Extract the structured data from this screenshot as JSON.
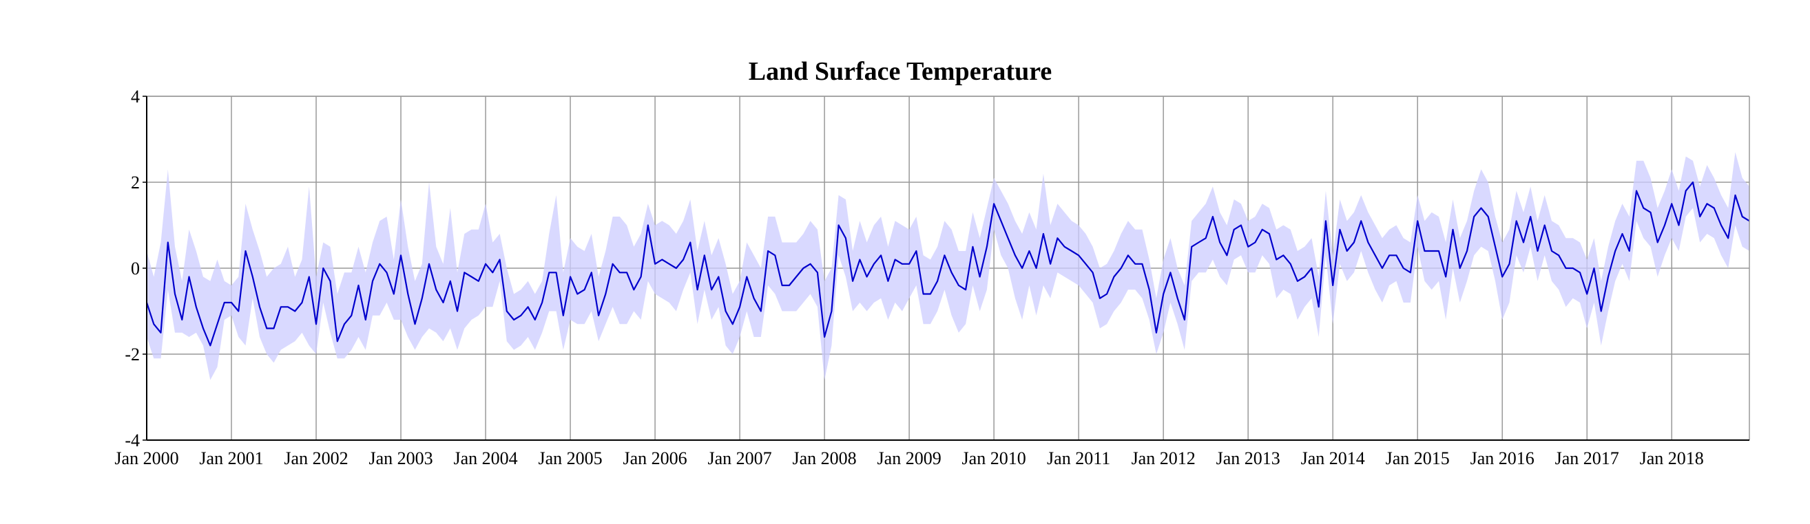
{
  "chart_data": {
    "type": "line",
    "title": "Land Surface Temperature",
    "xlabel": "",
    "ylabel": "",
    "grid": true,
    "ylim": [
      -4,
      4
    ],
    "y_ticks": [
      4,
      2,
      0,
      -2,
      -4
    ],
    "x_tick_labels": [
      "Jan 2000",
      "Jan 2001",
      "Jan 2002",
      "Jan 2003",
      "Jan 2004",
      "Jan 2005",
      "Jan 2006",
      "Jan 2007",
      "Jan 2008",
      "Jan 2009",
      "Jan 2010",
      "Jan 2011",
      "Jan 2012",
      "Jan 2013",
      "Jan 2014",
      "Jan 2015",
      "Jan 2016",
      "Jan 2017",
      "Jan 2018"
    ],
    "x_start": "2000-01",
    "x_end": "2018-12",
    "series": [
      {
        "kind": "line",
        "color": "#0000cc",
        "values": [
          -0.8,
          -1.3,
          -1.5,
          0.6,
          -0.6,
          -1.2,
          -0.2,
          -0.9,
          -1.4,
          -1.8,
          -1.3,
          -0.8,
          -0.8,
          -1.0,
          0.4,
          -0.2,
          -0.9,
          -1.4,
          -1.4,
          -0.9,
          -0.9,
          -1.0,
          -0.8,
          -0.2,
          -1.3,
          0.0,
          -0.3,
          -1.7,
          -1.3,
          -1.1,
          -0.4,
          -1.2,
          -0.3,
          0.1,
          -0.1,
          -0.6,
          0.3,
          -0.6,
          -1.3,
          -0.7,
          0.1,
          -0.5,
          -0.8,
          -0.3,
          -1.0,
          -0.1,
          -0.2,
          -0.3,
          0.1,
          -0.1,
          0.2,
          -1.0,
          -1.2,
          -1.1,
          -0.9,
          -1.2,
          -0.8,
          -0.1,
          -0.1,
          -1.1,
          -0.2,
          -0.6,
          -0.5,
          -0.1,
          -1.1,
          -0.6,
          0.1,
          -0.1,
          -0.1,
          -0.5,
          -0.2,
          1.0,
          0.1,
          0.2,
          0.1,
          0.0,
          0.2,
          0.6,
          -0.5,
          0.3,
          -0.5,
          -0.2,
          -1.0,
          -1.3,
          -0.9,
          -0.2,
          -0.7,
          -1.0,
          0.4,
          0.3,
          -0.4,
          -0.4,
          -0.2,
          0.0,
          0.1,
          -0.1,
          -1.6,
          -1.0,
          1.0,
          0.7,
          -0.3,
          0.2,
          -0.2,
          0.1,
          0.3,
          -0.3,
          0.2,
          0.1,
          0.1,
          0.4,
          -0.6,
          -0.6,
          -0.3,
          0.3,
          -0.1,
          -0.4,
          -0.5,
          0.5,
          -0.2,
          0.5,
          1.5,
          1.1,
          0.7,
          0.3,
          0.0,
          0.4,
          0.0,
          0.8,
          0.1,
          0.7,
          0.5,
          0.4,
          0.3,
          0.1,
          -0.1,
          -0.7,
          -0.6,
          -0.2,
          0.0,
          0.3,
          0.1,
          0.1,
          -0.5,
          -1.5,
          -0.6,
          -0.1,
          -0.7,
          -1.2,
          0.5,
          0.6,
          0.7,
          1.2,
          0.6,
          0.3,
          0.9,
          1.0,
          0.5,
          0.6,
          0.9,
          0.8,
          0.2,
          0.3,
          0.1,
          -0.3,
          -0.2,
          0.0,
          -0.9,
          1.1,
          -0.4,
          0.9,
          0.4,
          0.6,
          1.1,
          0.6,
          0.3,
          0.0,
          0.3,
          0.3,
          0.0,
          -0.1,
          1.1,
          0.4,
          0.4,
          0.4,
          -0.2,
          0.9,
          0.0,
          0.4,
          1.2,
          1.4,
          1.2,
          0.5,
          -0.2,
          0.1,
          1.1,
          0.6,
          1.2,
          0.4,
          1.0,
          0.4,
          0.3,
          0.0,
          0.0,
          -0.1,
          -0.6,
          0.0,
          -1.0,
          -0.2,
          0.4,
          0.8,
          0.4,
          1.8,
          1.4,
          1.3,
          0.6,
          1.0,
          1.5,
          1.0,
          1.8,
          2.0,
          1.2,
          1.5,
          1.4,
          1.0,
          0.7,
          1.7,
          1.2,
          1.1
        ]
      },
      {
        "kind": "band",
        "color": "#ccccff",
        "upper": [
          0.4,
          -0.2,
          0.6,
          2.3,
          0.5,
          -0.3,
          0.9,
          0.4,
          -0.2,
          -0.3,
          0.2,
          -0.3,
          -0.4,
          -0.2,
          1.5,
          0.9,
          0.4,
          -0.2,
          0.0,
          0.1,
          0.5,
          -0.2,
          0.2,
          1.9,
          -0.2,
          0.6,
          0.5,
          -0.6,
          -0.1,
          -0.1,
          0.5,
          -0.1,
          0.6,
          1.1,
          1.2,
          0.2,
          1.6,
          0.5,
          -0.3,
          0.1,
          2.0,
          0.5,
          0.1,
          1.4,
          -0.1,
          0.8,
          0.9,
          0.9,
          1.5,
          0.6,
          0.8,
          0.0,
          -0.6,
          -0.5,
          -0.3,
          -0.6,
          -0.3,
          0.8,
          1.7,
          -0.1,
          0.7,
          0.5,
          0.4,
          0.8,
          -0.2,
          0.4,
          1.2,
          1.2,
          1.0,
          0.5,
          0.8,
          1.5,
          1.0,
          1.1,
          1.0,
          0.8,
          1.1,
          1.6,
          0.4,
          1.1,
          0.3,
          0.7,
          0.1,
          -0.6,
          -0.3,
          0.6,
          0.3,
          0.0,
          1.2,
          1.2,
          0.6,
          0.6,
          0.6,
          0.8,
          1.1,
          0.9,
          -0.3,
          0.0,
          1.7,
          1.6,
          0.4,
          1.1,
          0.6,
          1.0,
          1.2,
          0.5,
          1.1,
          1.0,
          0.9,
          1.2,
          0.3,
          0.2,
          0.5,
          1.1,
          0.9,
          0.4,
          0.4,
          1.3,
          0.7,
          1.4,
          2.1,
          1.8,
          1.5,
          1.1,
          0.8,
          1.3,
          0.9,
          2.2,
          1.0,
          1.5,
          1.3,
          1.1,
          1.0,
          0.8,
          0.5,
          0.0,
          0.1,
          0.4,
          0.8,
          1.1,
          0.9,
          0.9,
          0.2,
          -0.7,
          0.2,
          0.7,
          0.0,
          -0.4,
          1.1,
          1.3,
          1.5,
          1.9,
          1.3,
          1.0,
          1.6,
          1.5,
          1.1,
          1.2,
          1.5,
          1.4,
          0.9,
          1.0,
          0.9,
          0.4,
          0.5,
          0.7,
          -0.2,
          1.8,
          0.3,
          1.6,
          1.1,
          1.3,
          1.7,
          1.3,
          1.0,
          0.7,
          0.9,
          1.0,
          0.7,
          0.6,
          1.7,
          1.1,
          1.3,
          1.2,
          0.6,
          1.6,
          0.7,
          1.1,
          1.8,
          2.3,
          2.0,
          1.2,
          0.6,
          0.9,
          1.8,
          1.3,
          1.9,
          1.1,
          1.7,
          1.1,
          1.0,
          0.7,
          0.7,
          0.6,
          0.2,
          0.7,
          -0.3,
          0.5,
          1.1,
          1.5,
          1.2,
          2.5,
          2.5,
          2.1,
          1.4,
          1.8,
          2.3,
          1.8,
          2.6,
          2.5,
          1.9,
          2.4,
          2.1,
          1.7,
          1.4,
          2.7,
          2.1,
          1.9
        ],
        "lower": [
          -1.6,
          -2.1,
          -2.1,
          -0.5,
          -1.5,
          -1.5,
          -1.6,
          -1.5,
          -1.8,
          -2.6,
          -2.3,
          -1.2,
          -1.1,
          -1.6,
          -1.8,
          -0.7,
          -1.6,
          -2.0,
          -2.2,
          -1.9,
          -1.8,
          -1.7,
          -1.5,
          -1.8,
          -2.0,
          -0.8,
          -1.5,
          -2.1,
          -2.1,
          -1.9,
          -1.6,
          -1.9,
          -1.1,
          -1.1,
          -0.8,
          -1.2,
          -1.2,
          -1.6,
          -1.9,
          -1.6,
          -1.4,
          -1.5,
          -1.7,
          -1.4,
          -1.9,
          -1.4,
          -1.2,
          -1.1,
          -0.9,
          -0.9,
          -0.3,
          -1.7,
          -1.9,
          -1.8,
          -1.6,
          -1.9,
          -1.5,
          -1.0,
          -1.0,
          -1.9,
          -1.2,
          -1.3,
          -1.3,
          -1.0,
          -1.7,
          -1.3,
          -0.9,
          -1.3,
          -1.3,
          -1.0,
          -1.2,
          -0.3,
          -0.6,
          -0.7,
          -0.8,
          -1.0,
          -0.5,
          -0.1,
          -1.3,
          -0.5,
          -1.2,
          -0.9,
          -1.8,
          -2.0,
          -1.6,
          -1.0,
          -1.6,
          -1.6,
          -0.4,
          -0.6,
          -1.0,
          -1.0,
          -1.0,
          -0.8,
          -0.6,
          -0.9,
          -2.6,
          -1.8,
          0.3,
          -0.2,
          -1.0,
          -0.8,
          -1.0,
          -0.8,
          -0.7,
          -1.2,
          -0.8,
          -1.0,
          -0.7,
          -0.4,
          -1.3,
          -1.3,
          -1.0,
          -0.5,
          -1.1,
          -1.5,
          -1.3,
          -0.4,
          -1.0,
          -0.5,
          0.9,
          0.3,
          0.0,
          -0.7,
          -1.2,
          -0.4,
          -1.1,
          -0.4,
          -0.7,
          -0.1,
          -0.2,
          -0.3,
          -0.4,
          -0.6,
          -0.8,
          -1.4,
          -1.3,
          -1.0,
          -0.8,
          -0.5,
          -0.5,
          -0.7,
          -1.2,
          -2.0,
          -1.5,
          -0.8,
          -1.3,
          -1.9,
          -0.3,
          -0.1,
          -0.1,
          0.2,
          -0.2,
          -0.4,
          0.2,
          0.3,
          -0.1,
          -0.1,
          0.3,
          0.1,
          -0.7,
          -0.5,
          -0.6,
          -1.2,
          -0.9,
          -0.7,
          -1.6,
          0.3,
          -1.3,
          0.1,
          -0.3,
          -0.1,
          0.4,
          -0.1,
          -0.5,
          -0.8,
          -0.4,
          -0.3,
          -0.8,
          -0.8,
          0.5,
          -0.3,
          -0.5,
          -0.3,
          -1.2,
          0.0,
          -0.8,
          -0.3,
          0.3,
          0.5,
          0.4,
          -0.3,
          -1.2,
          -0.8,
          0.3,
          -0.1,
          0.5,
          -0.3,
          0.3,
          -0.3,
          -0.5,
          -0.9,
          -0.7,
          -0.8,
          -1.4,
          -0.8,
          -1.8,
          -1.0,
          -0.3,
          0.1,
          -0.3,
          1.1,
          0.7,
          0.5,
          -0.2,
          0.3,
          0.7,
          0.4,
          1.2,
          1.4,
          0.6,
          0.8,
          0.7,
          0.3,
          0.0,
          1.0,
          0.5,
          0.4
        ]
      }
    ]
  }
}
